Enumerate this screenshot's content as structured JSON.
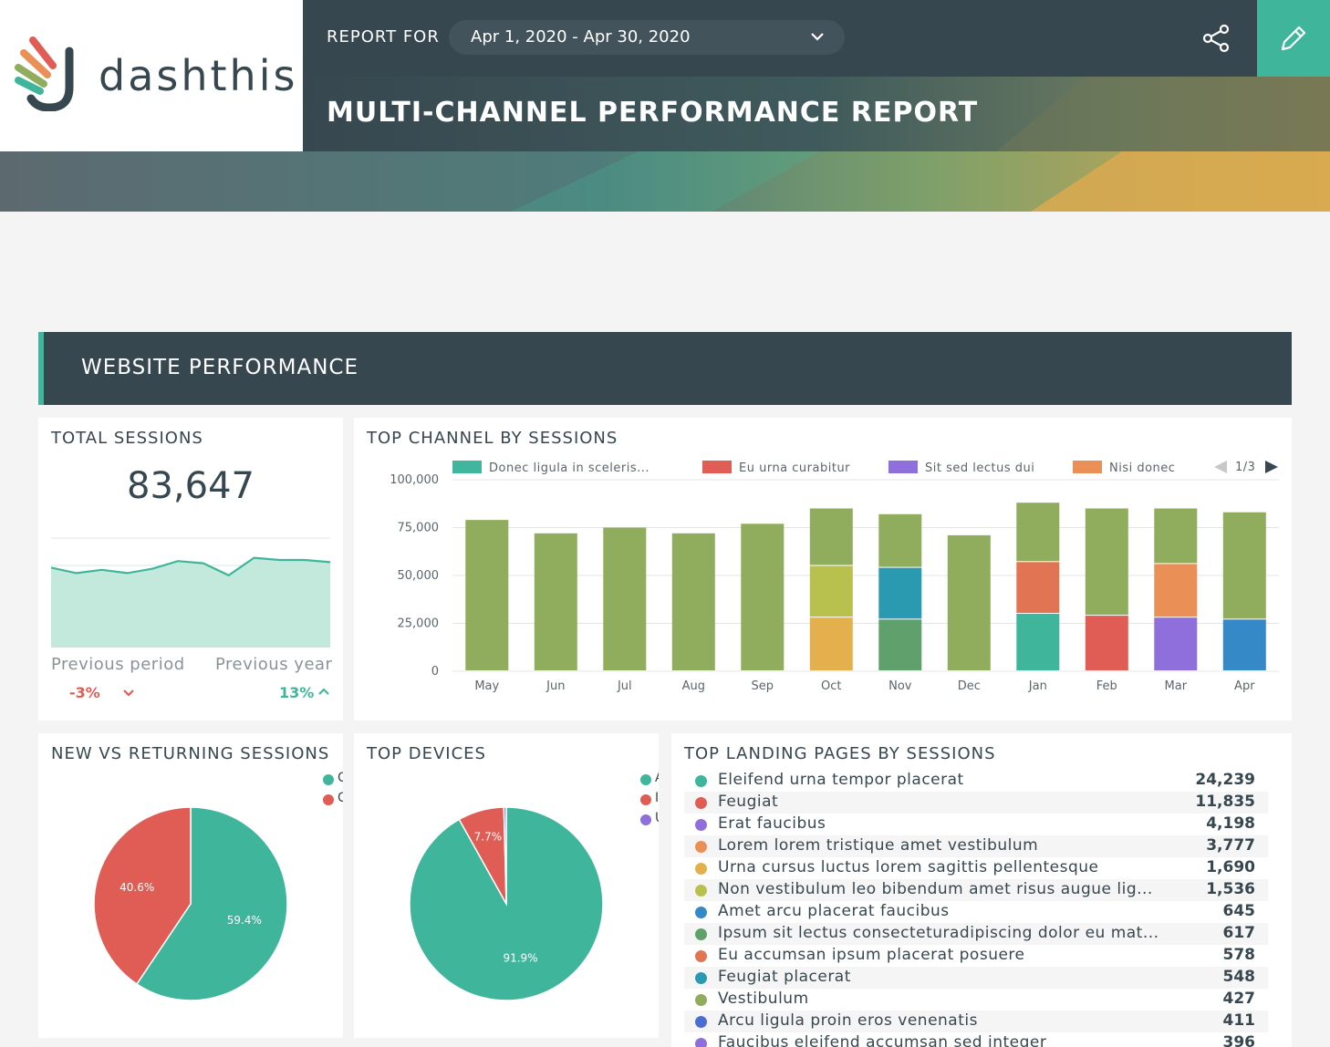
{
  "header": {
    "logo_text": "dashthis",
    "report_for_label": "REPORT FOR",
    "date_range": "Apr 1, 2020 - Apr 30, 2020",
    "title": "MULTI-CHANNEL PERFORMANCE REPORT"
  },
  "section": {
    "title": "WEBSITE PERFORMANCE"
  },
  "total_sessions": {
    "title": "TOTAL SESSIONS",
    "value": "83,647",
    "sparkline": [
      73,
      68,
      71,
      68,
      72,
      79,
      77,
      66,
      82,
      80,
      80,
      78
    ],
    "previous_period_label": "Previous period",
    "previous_period_value": "-3%",
    "previous_year_label": "Previous year",
    "previous_year_value": "13%"
  },
  "top_channel": {
    "title": "TOP CHANNEL BY SESSIONS",
    "legend": [
      {
        "label": "Donec ligula in sceleris...",
        "color": "#3fb69b"
      },
      {
        "label": "Eu urna curabitur",
        "color": "#e05d55"
      },
      {
        "label": "Sit sed lectus dui",
        "color": "#8e6fdb"
      },
      {
        "label": "Nisi donec",
        "color": "#ea8f55"
      }
    ],
    "legend_page": "1/3"
  },
  "chart_data": {
    "type": "bar",
    "stacked": true,
    "categories": [
      "May",
      "Jun",
      "Jul",
      "Aug",
      "Sep",
      "Oct",
      "Nov",
      "Dec",
      "Jan",
      "Feb",
      "Mar",
      "Apr"
    ],
    "yticks": [
      "100,000",
      "75,000",
      "50,000",
      "25,000",
      "0"
    ],
    "ylim": [
      0,
      100000
    ],
    "grid": true,
    "legend_position": "top",
    "segments": [
      [
        {
          "v": 79000,
          "c": "#8fad5c"
        }
      ],
      [
        {
          "v": 72000,
          "c": "#8fad5c"
        }
      ],
      [
        {
          "v": 75000,
          "c": "#8fad5c"
        }
      ],
      [
        {
          "v": 72000,
          "c": "#8fad5c"
        }
      ],
      [
        {
          "v": 77000,
          "c": "#8fad5c"
        }
      ],
      [
        {
          "v": 28000,
          "c": "#e4b04e"
        },
        {
          "v": 27000,
          "c": "#b8c04e"
        },
        {
          "v": 30000,
          "c": "#8fad5c"
        }
      ],
      [
        {
          "v": 27000,
          "c": "#5fa06c"
        },
        {
          "v": 27000,
          "c": "#2a9ab0"
        },
        {
          "v": 28000,
          "c": "#8fad5c"
        }
      ],
      [
        {
          "v": 71000,
          "c": "#8fad5c"
        }
      ],
      [
        {
          "v": 30000,
          "c": "#3fb69b"
        },
        {
          "v": 27000,
          "c": "#e07453"
        },
        {
          "v": 31000,
          "c": "#8fad5c"
        }
      ],
      [
        {
          "v": 29000,
          "c": "#e05d55"
        },
        {
          "v": 56000,
          "c": "#8fad5c"
        }
      ],
      [
        {
          "v": 28000,
          "c": "#8e6fdb"
        },
        {
          "v": 28000,
          "c": "#ea8f55"
        },
        {
          "v": 29000,
          "c": "#8fad5c"
        }
      ],
      [
        {
          "v": 27000,
          "c": "#3589c6"
        },
        {
          "v": 56000,
          "c": "#8fad5c"
        }
      ]
    ]
  },
  "new_vs_returning": {
    "title": "NEW VS RETURNING SESSIONS",
    "slices": [
      {
        "value": 59.4,
        "label": "59.4%",
        "color": "#3fb69b"
      },
      {
        "value": 40.6,
        "label": "40.6%",
        "color": "#e05d55"
      }
    ],
    "legend": [
      {
        "text": "C",
        "color": "#3fb69b"
      },
      {
        "text": "C",
        "color": "#e05d55"
      }
    ]
  },
  "top_devices": {
    "title": "TOP DEVICES",
    "slices": [
      {
        "value": 91.9,
        "label": "91.9%",
        "color": "#3fb69b"
      },
      {
        "value": 7.7,
        "label": "7.7%",
        "color": "#e05d55"
      },
      {
        "value": 0.4,
        "label": "",
        "color": "#8e6fdb"
      }
    ],
    "legend": [
      {
        "text": "A",
        "color": "#3fb69b"
      },
      {
        "text": "I",
        "color": "#e05d55"
      },
      {
        "text": "U",
        "color": "#8e6fdb"
      }
    ]
  },
  "landing_pages": {
    "title": "TOP LANDING PAGES BY SESSIONS",
    "rows": [
      {
        "label": "Eleifend urna tempor placerat",
        "value": "24,239",
        "color": "#3fb69b"
      },
      {
        "label": "Feugiat",
        "value": "11,835",
        "color": "#e05d55"
      },
      {
        "label": "Erat faucibus",
        "value": "4,198",
        "color": "#8e6fdb"
      },
      {
        "label": "Lorem lorem tristique amet vestibulum",
        "value": "3,777",
        "color": "#ea8f55"
      },
      {
        "label": "Urna cursus luctus lorem sagittis pellentesque",
        "value": "1,690",
        "color": "#e4b04e"
      },
      {
        "label": "Non vestibulum leo bibendum amet risus augue lig...",
        "value": "1,536",
        "color": "#b8c04e"
      },
      {
        "label": "Amet arcu placerat faucibus",
        "value": "645",
        "color": "#3589c6"
      },
      {
        "label": "Ipsum sit lectus consecteturadipiscing dolor eu mat...",
        "value": "617",
        "color": "#5fa06c"
      },
      {
        "label": "Eu accumsan ipsum placerat posuere",
        "value": "578",
        "color": "#e07453"
      },
      {
        "label": "Feugiat placerat",
        "value": "548",
        "color": "#2a9ab0"
      },
      {
        "label": "Vestibulum",
        "value": "427",
        "color": "#8fad5c"
      },
      {
        "label": "Arcu ligula proin eros venenatis",
        "value": "411",
        "color": "#4a6fd1"
      },
      {
        "label": "Faucibus eleifend accumsan sed integer",
        "value": "396",
        "color": "#8e6fdb"
      }
    ]
  }
}
